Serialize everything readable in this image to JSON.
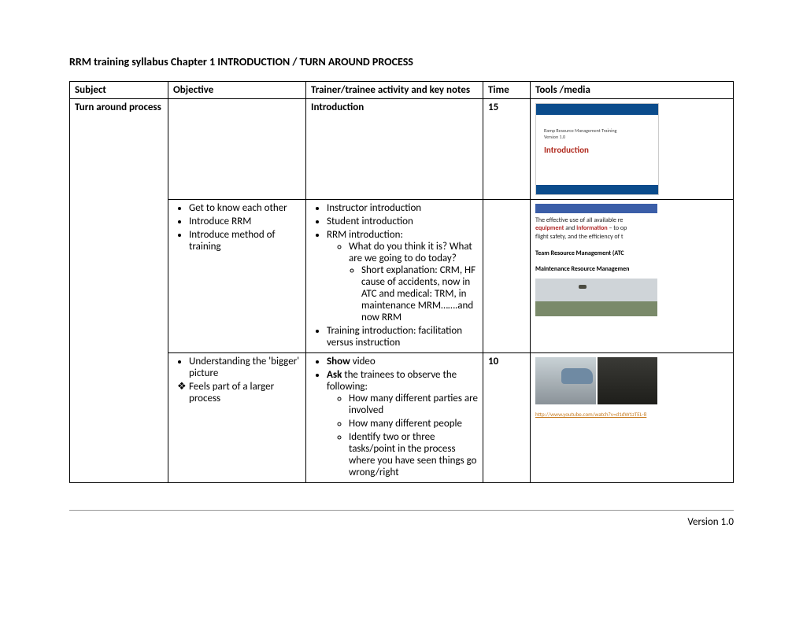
{
  "title": "RRM training syllabus Chapter 1 INTRODUCTION / TURN AROUND PROCESS",
  "header": {
    "c1": "Subject",
    "c2": "Objective",
    "c3": "Trainer/trainee activity and key notes",
    "c4": "Time",
    "c5": "Tools /media"
  },
  "row1": {
    "subject": "Turn around process",
    "activity": "Introduction",
    "time": "15",
    "slide": {
      "line1": "Ramp Resource Management Training",
      "line2": "Version 1.0",
      "intro": "Introduction"
    }
  },
  "row2": {
    "obj": {
      "i1": "Get to know each other",
      "i2": "Introduce RRM",
      "i3": "Introduce method of training"
    },
    "act": {
      "i1": "Instructor introduction",
      "i2": "Student introduction",
      "i3": "RRM introduction:",
      "s1": "What do you think it is? What are we going to do today?",
      "s2": "Short explanation: CRM, HF cause of accidents, now in ATC and medical: TRM, in maintenance MRM…….and now RRM",
      "i4": "Training introduction: facilitation versus instruction"
    },
    "slide": {
      "t1a": "The effective use of all available re",
      "t1b": "equipment",
      "t1c": " and ",
      "t1d": "information",
      "t1e": " – to op",
      "t2": "flight safety, and the efficiency of t",
      "t3": "Team Resource Management (ATC",
      "t4": "Maintenance Resource Managemen"
    }
  },
  "row3": {
    "obj": {
      "i1": "Understanding the 'bigger' picture",
      "i2": "Feels part of a larger process"
    },
    "act": {
      "show": "Show",
      "show_rest": " video",
      "ask": "Ask",
      "ask_rest": " the trainees to observe the following:",
      "s1": "How many different parties are involved",
      "s2": "How many different people",
      "s3": "Identify two or three tasks/point in the process where you have seen things go wrong/right"
    },
    "time": "10",
    "link": "http://www.youtube.com/watch?v=d1dW1zTEL-8"
  },
  "footer": "Version 1.0"
}
